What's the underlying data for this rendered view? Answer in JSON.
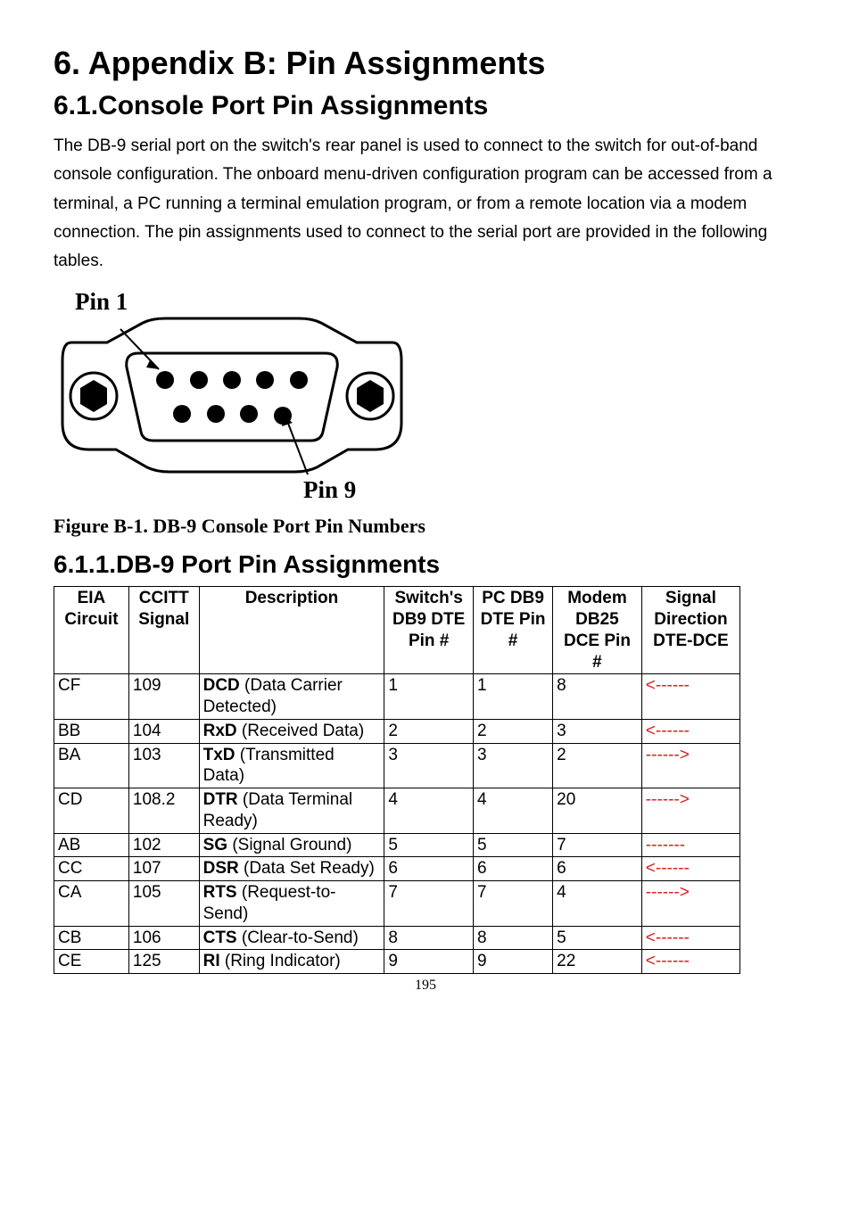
{
  "headings": {
    "h1": "6. Appendix B: Pin Assignments",
    "h2": "6.1.Console Port Pin Assignments",
    "h3": "6.1.1.DB-9 Port Pin Assignments"
  },
  "paragraph": "The DB-9 serial port on the switch's rear panel is used to connect to the switch for out-of-band console configuration. The onboard menu-driven configuration program can be accessed from a terminal, a PC running a terminal emulation program, or from a remote location via a modem connection. The pin assignments used to connect to the serial port are provided in the following tables.",
  "figure": {
    "pin1_label": "Pin 1",
    "pin9_label": "Pin 9",
    "caption": "Figure B-1.  DB-9 Console Port Pin Numbers"
  },
  "table": {
    "headers": {
      "eia": "EIA Circuit",
      "ccitt": "CCITT Signal",
      "desc": "Description",
      "switch": "Switch's DB9 DTE Pin #",
      "pcdb9": "PC DB9 DTE Pin #",
      "modem": "Modem DB25 DCE Pin #",
      "signal": "Signal Direction DTE-DCE"
    },
    "col_widths": {
      "eia": "80px",
      "ccitt": "75px",
      "desc": "198px",
      "switch": "95px",
      "pcdb9": "85px",
      "modem": "95px",
      "signal": "105px"
    },
    "rows": [
      {
        "eia": "CF",
        "ccitt": "109",
        "desc_bold": "DCD",
        "desc_rest": " (Data Carrier Detected)",
        "switch": "1",
        "pcdb9": "1",
        "modem": "8",
        "dir": "<------",
        "dir_color": "red"
      },
      {
        "eia": "BB",
        "ccitt": "104",
        "desc_bold": "RxD",
        "desc_rest": " (Received Data)",
        "switch": "2",
        "pcdb9": "2",
        "modem": "3",
        "dir": "<------",
        "dir_color": "red"
      },
      {
        "eia": "BA",
        "ccitt": "103",
        "desc_bold": "TxD",
        "desc_rest": " (Transmitted Data)",
        "switch": "3",
        "pcdb9": "3",
        "modem": "2",
        "dir": "------>",
        "dir_color": "red"
      },
      {
        "eia": "CD",
        "ccitt": "108.2",
        "desc_bold": "DTR",
        "desc_rest": " (Data Terminal Ready)",
        "switch": "4",
        "pcdb9": "4",
        "modem": "20",
        "dir": "------>",
        "dir_color": "red"
      },
      {
        "eia": "AB",
        "ccitt": "102",
        "desc_bold": "SG",
        "desc_rest": " (Signal Ground)",
        "switch": "5",
        "pcdb9": "5",
        "modem": "7",
        "dir": "-------",
        "dir_color": "red"
      },
      {
        "eia": "CC",
        "ccitt": "107",
        "desc_bold": "DSR",
        "desc_rest": " (Data Set Ready)",
        "switch": "6",
        "pcdb9": "6",
        "modem": "6",
        "dir": "<------",
        "dir_color": "red"
      },
      {
        "eia": "CA",
        "ccitt": "105",
        "desc_bold": "RTS",
        "desc_rest": " (Request-to-Send)",
        "switch": "7",
        "pcdb9": "7",
        "modem": "4",
        "dir": "------>",
        "dir_color": "red"
      },
      {
        "eia": "CB",
        "ccitt": "106",
        "desc_bold": "CTS",
        "desc_rest": " (Clear-to-Send)",
        "switch": "8",
        "pcdb9": "8",
        "modem": "5",
        "dir": "<------",
        "dir_color": "red"
      },
      {
        "eia": "CE",
        "ccitt": "125",
        "desc_bold": "RI",
        "desc_rest": " (Ring Indicator)",
        "switch": "9",
        "pcdb9": "9",
        "modem": "22",
        "dir": "<------",
        "dir_color": "red"
      }
    ]
  },
  "page_number": "195"
}
